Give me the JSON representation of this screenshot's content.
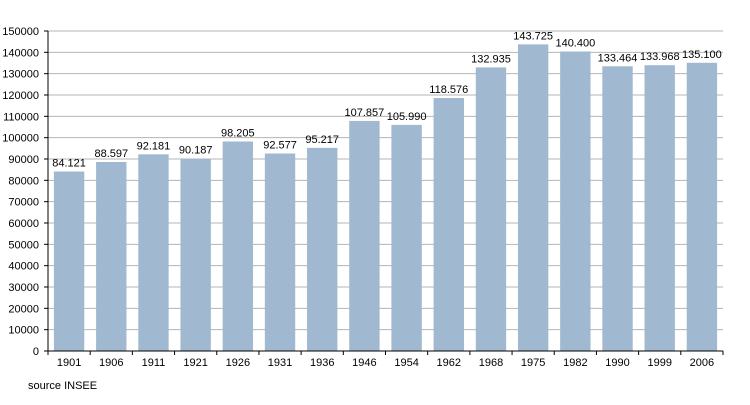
{
  "chart_data": {
    "type": "bar",
    "categories": [
      "1901",
      "1906",
      "1911",
      "1921",
      "1926",
      "1931",
      "1936",
      "1946",
      "1954",
      "1962",
      "1968",
      "1975",
      "1982",
      "1990",
      "1999",
      "2006"
    ],
    "values": [
      84121,
      88597,
      92181,
      90187,
      98205,
      92577,
      95217,
      107857,
      105990,
      118576,
      132935,
      143725,
      140400,
      133464,
      133968,
      135100
    ],
    "value_labels": [
      "84.121",
      "88.597",
      "92.181",
      "90.187",
      "98.205",
      "92.577",
      "95.217",
      "107.857",
      "105.990",
      "118.576",
      "132.935",
      "143.725",
      "140.400",
      "133.464",
      "133.968",
      "135.100"
    ],
    "ylim": [
      0,
      150000
    ],
    "y_ticks": [
      0,
      10000,
      20000,
      30000,
      40000,
      50000,
      60000,
      70000,
      80000,
      90000,
      100000,
      110000,
      120000,
      130000,
      140000,
      150000
    ],
    "y_tick_labels": [
      "0",
      "10000",
      "20000",
      "30000",
      "40000",
      "50000",
      "60000",
      "70000",
      "80000",
      "90000",
      "100000",
      "110000",
      "120000",
      "130000",
      "140000",
      "150000"
    ],
    "title": "",
    "xlabel": "",
    "ylabel": "",
    "grid": true,
    "bar_color": "#a0b8d0",
    "grid_color": "#b4b4b4"
  },
  "source_note": "source INSEE"
}
